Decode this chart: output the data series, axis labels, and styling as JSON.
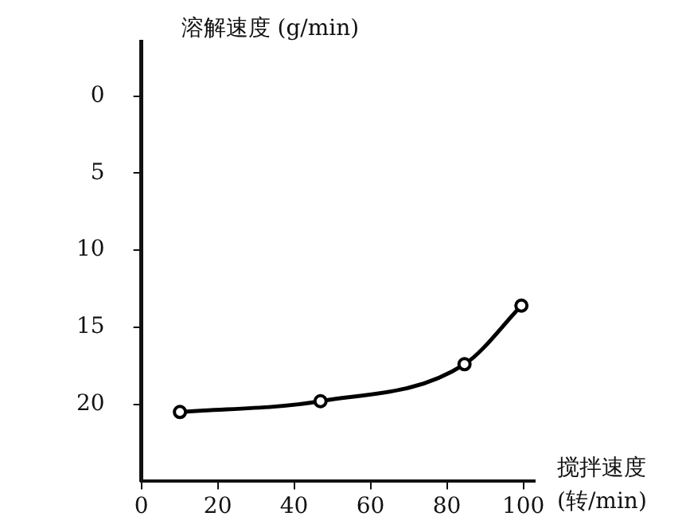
{
  "chart_data": {
    "type": "line",
    "ylabel": "溶解速度 (g/min)",
    "xlabel": "搅拌速度\n(转/min)",
    "x": [
      10.1,
      46.9,
      84.6,
      99.5
    ],
    "series": [
      {
        "color": "#000000",
        "values": [
          20.5,
          19.8,
          17.4,
          13.6
        ]
      }
    ],
    "xlim": [
      0,
      103
    ],
    "xticks": [
      0,
      20,
      40,
      60,
      80,
      100
    ],
    "ylim": [
      25,
      -3.5
    ],
    "yticks": [
      0,
      5,
      10,
      15,
      20
    ],
    "grid": false,
    "legend": false,
    "marker": "circle",
    "line_style": "solid"
  }
}
